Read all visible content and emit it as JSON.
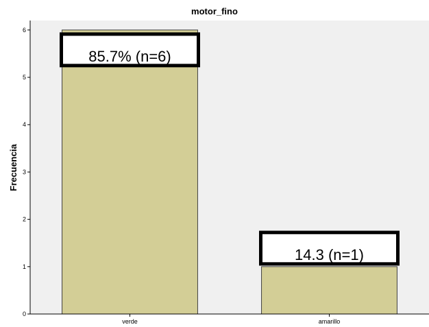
{
  "chart_data": {
    "type": "bar",
    "title": "motor_fino",
    "xlabel": "",
    "ylabel": "Frecuencia",
    "categories": [
      "verde",
      "amarillo"
    ],
    "values": [
      6,
      1
    ],
    "ylim": [
      0,
      6.2
    ],
    "yticks": [
      0,
      1,
      2,
      3,
      4,
      5,
      6
    ],
    "data_labels": [
      "85.7% (n=6)",
      "14.3 (n=1)"
    ],
    "colors": {
      "bar_fill": "#d3ce96",
      "bar_stroke": "#404040",
      "plot_background": "#f0f0f0",
      "annotation_box_stroke": "#000000"
    },
    "grid": false
  }
}
